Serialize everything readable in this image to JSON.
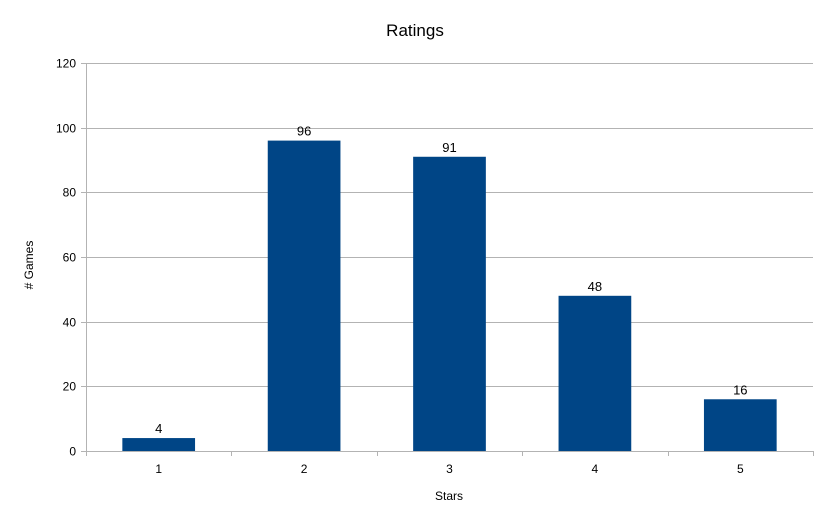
{
  "chart_data": {
    "type": "bar",
    "title": "Ratings",
    "xlabel": "Stars",
    "ylabel": "# Games",
    "categories": [
      "1",
      "2",
      "3",
      "4",
      "5"
    ],
    "values": [
      4,
      96,
      91,
      48,
      16
    ],
    "ylim": [
      0,
      120
    ],
    "yticks": [
      0,
      20,
      40,
      60,
      80,
      100,
      120
    ],
    "grid": true,
    "legend": "none",
    "bar_color": "#004586"
  }
}
